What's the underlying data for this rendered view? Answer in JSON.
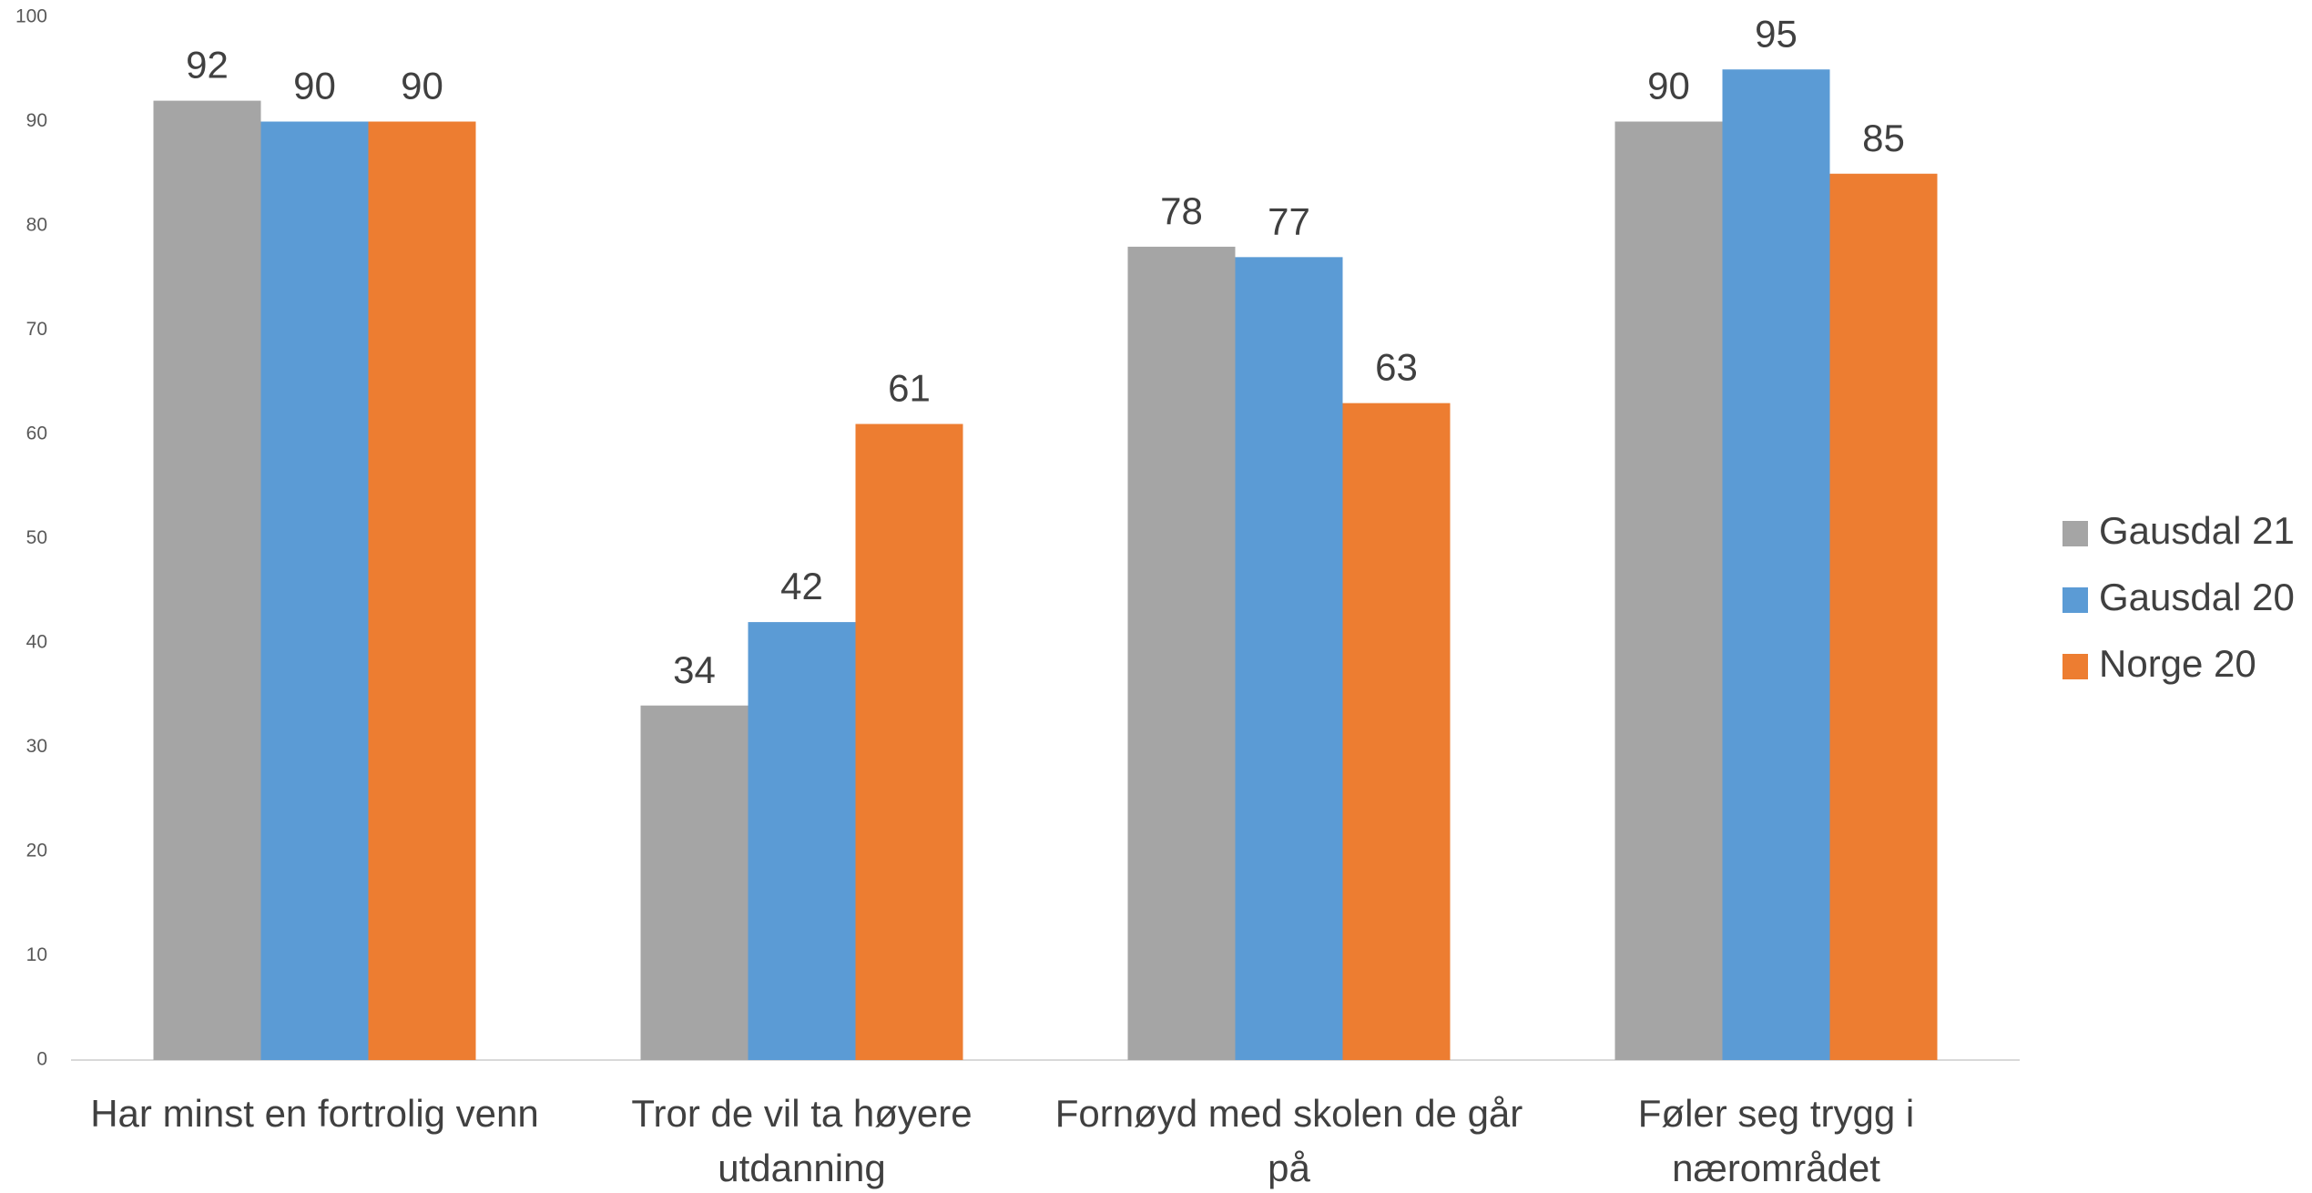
{
  "chart_data": {
    "type": "bar",
    "categories": [
      "Har minst en fortrolig venn",
      "Tror de vil ta høyere utdanning",
      "Fornøyd med skolen de går på",
      "Føler seg trygg i nærområdet"
    ],
    "series": [
      {
        "name": "Gausdal 21",
        "color": "#a5a5a5",
        "values": [
          92,
          34,
          78,
          90
        ]
      },
      {
        "name": "Gausdal 20",
        "color": "#5b9bd5",
        "values": [
          90,
          42,
          77,
          95
        ]
      },
      {
        "name": "Norge 20",
        "color": "#ed7d31",
        "values": [
          90,
          61,
          63,
          85
        ]
      }
    ],
    "ylim": [
      0,
      100
    ],
    "yticks": [
      0,
      10,
      20,
      30,
      40,
      50,
      60,
      70,
      80,
      90,
      100
    ],
    "grid": false,
    "legend": "right"
  }
}
